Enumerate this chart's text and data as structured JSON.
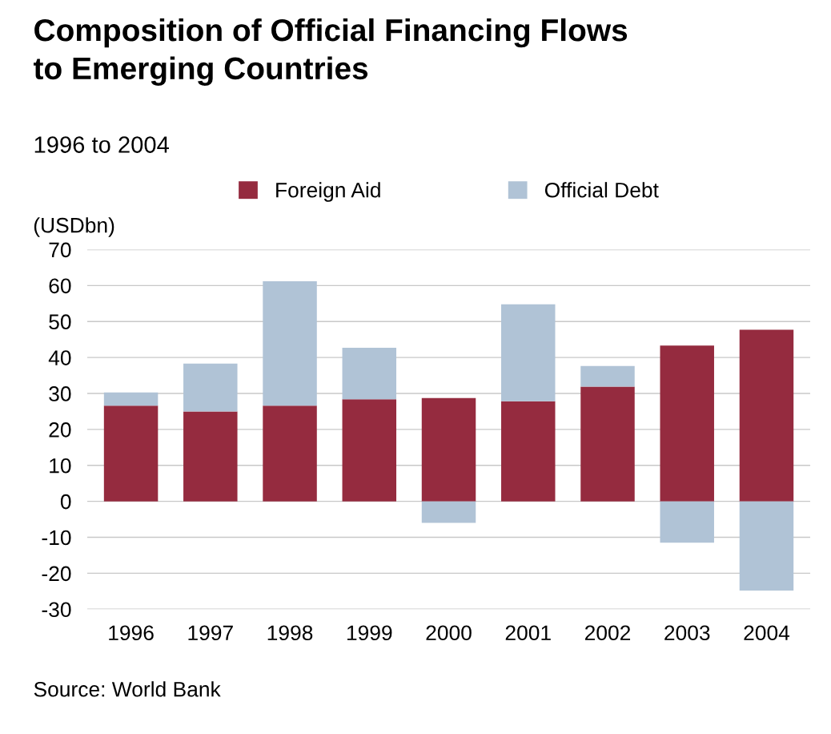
{
  "chart_data": {
    "type": "bar",
    "stacked": true,
    "title": "Composition of Official Financing Flows\nto Emerging Countries",
    "subtitle": "1996 to 2004",
    "ylabel": "(USDbn)",
    "categories": [
      "1996",
      "1997",
      "1998",
      "1999",
      "2000",
      "2001",
      "2002",
      "2003",
      "2004"
    ],
    "series": [
      {
        "name": "Foreign Aid",
        "color": "#952b3f",
        "values": [
          26.6,
          25.0,
          26.6,
          28.4,
          28.7,
          27.8,
          31.9,
          43.3,
          47.7
        ]
      },
      {
        "name": "Official Debt",
        "color": "#b0c3d6",
        "values": [
          3.7,
          13.3,
          34.6,
          14.3,
          -6.0,
          27.0,
          5.7,
          -11.5,
          -24.8
        ]
      }
    ],
    "ylim": [
      -30,
      70
    ],
    "yticks": [
      -30,
      -20,
      -10,
      0,
      10,
      20,
      30,
      40,
      50,
      60,
      70
    ],
    "grid": "y",
    "legend": "top",
    "annotations": [
      "Source: World Bank"
    ]
  }
}
